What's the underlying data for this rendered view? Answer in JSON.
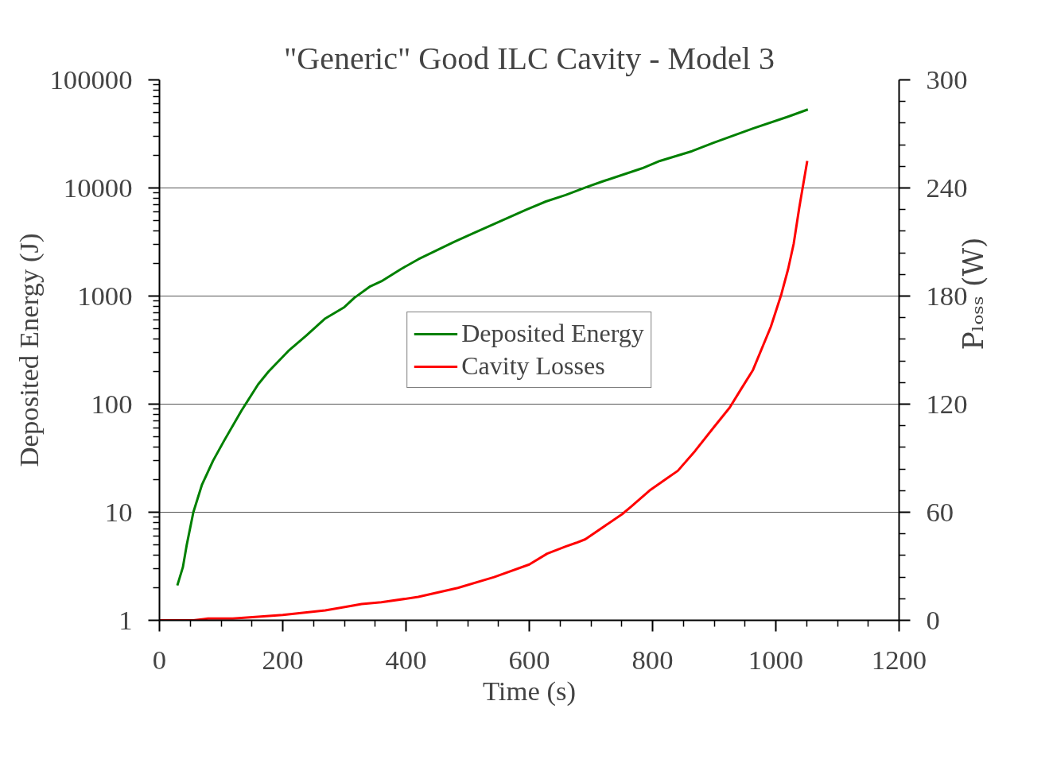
{
  "chart_data": {
    "type": "line",
    "title": "\"Generic\" Good ILC Cavity - Model 3",
    "xlabel": "Time (s)",
    "ylabel": "Deposited Energy (J)",
    "y2label": "Pₗₒₛₛ (W)",
    "log": "y",
    "grid": "y",
    "legend": "center",
    "line_style": "solid",
    "marker": "none",
    "xlim": [
      0,
      1200
    ],
    "xticks": [
      0,
      200,
      400,
      600,
      800,
      1000,
      1200
    ],
    "ylim": [
      1,
      100000
    ],
    "yticks": [
      1,
      10,
      100,
      1000,
      10000,
      100000
    ],
    "y2lim": [
      0,
      300
    ],
    "y2ticks": [
      0,
      60,
      120,
      180,
      240,
      300
    ],
    "series": [
      {
        "name": "Deposited Energy",
        "color": "#008000",
        "x": [
          29,
          38,
          44,
          55,
          69,
          87,
          105,
          133,
          160,
          177,
          209,
          238,
          269,
          300,
          316,
          342,
          360,
          392,
          420,
          478,
          508,
          595,
          627,
          659,
          693,
          719,
          783,
          812,
          864,
          899,
          963,
          1020,
          1052
        ],
        "values": [
          2.1,
          3.1,
          4.9,
          10,
          18,
          30,
          46,
          87,
          152,
          200,
          310,
          430,
          620,
          790,
          960,
          1230,
          1370,
          1780,
          2190,
          3170,
          3780,
          6300,
          7500,
          8600,
          10200,
          11500,
          15200,
          17800,
          21900,
          26200,
          35500,
          45700,
          53200
        ]
      },
      {
        "name": "Cavity Losses",
        "color": "#ff0000",
        "axis": "y2",
        "x": [
          0,
          55,
          79,
          119,
          160,
          200,
          269,
          328,
          360,
          420,
          484,
          543,
          600,
          629,
          659,
          676,
          691,
          751,
          765,
          795,
          824,
          841,
          869,
          899,
          925,
          943,
          963,
          992,
          1009,
          1020,
          1029,
          1038,
          1051
        ],
        "values": [
          0,
          0,
          1,
          1,
          2,
          3,
          5.5,
          9,
          10,
          13,
          18,
          24,
          31,
          37,
          41,
          43,
          45,
          59,
          63,
          72,
          79,
          83,
          94,
          107,
          118,
          128,
          139,
          163,
          181,
          195,
          209,
          229,
          255
        ]
      }
    ]
  }
}
